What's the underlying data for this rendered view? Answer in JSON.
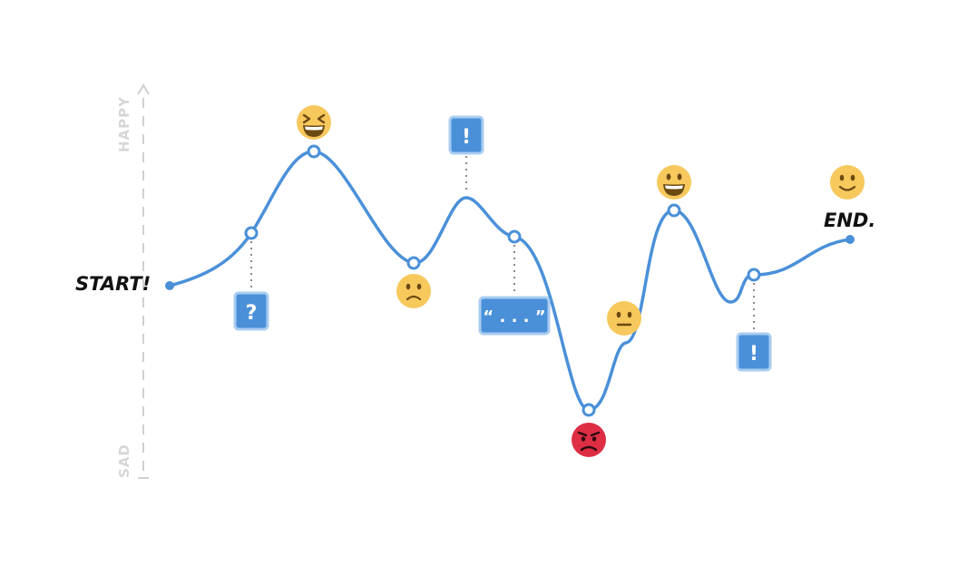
{
  "colors": {
    "line": "#4a90d9",
    "box": "#4a90d9",
    "box_border": "#a9cdf1",
    "axis": "#d0d0d0",
    "emoji_yellow": "#f7c85c",
    "emoji_red": "#dd2e44",
    "face_dark": "#6b4a12"
  },
  "axis": {
    "top_label": "HAPPY",
    "bottom_label": "SAD"
  },
  "labels": {
    "start": "START!",
    "end": "END."
  },
  "markers": [
    {
      "text": "?",
      "icon": "question-mark"
    },
    {
      "text": "!",
      "icon": "exclamation-mark"
    },
    {
      "text": "“ . . . ”",
      "icon": "quote-ellipsis"
    },
    {
      "text": "!",
      "icon": "exclamation-mark"
    }
  ],
  "emojis": [
    {
      "icon": "grinning-squinting-face-icon",
      "mood": "very-happy"
    },
    {
      "icon": "slightly-frowning-face-icon",
      "mood": "sad"
    },
    {
      "icon": "angry-face-icon",
      "mood": "angry"
    },
    {
      "icon": "neutral-face-icon",
      "mood": "neutral"
    },
    {
      "icon": "grinning-face-icon",
      "mood": "happy"
    },
    {
      "icon": "slightly-smiling-face-icon",
      "mood": "content"
    }
  ]
}
